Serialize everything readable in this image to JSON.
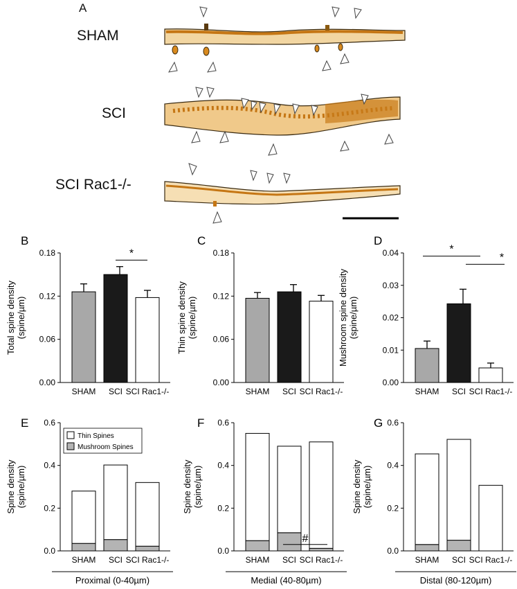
{
  "panel_a": {
    "letter": "A",
    "rows": [
      "SHAM",
      "SCI",
      "SCI Rac1-/-"
    ]
  },
  "colors": {
    "sham": "#a8a8a8",
    "sci": "#1a1a1a",
    "rac": "#ffffff",
    "thin": "#ffffff",
    "mushroom": "#b4b4b4",
    "dendrite": "#d08a1e"
  },
  "chart_data": [
    {
      "panel": "B",
      "type": "bar",
      "categories": [
        "SHAM",
        "SCI",
        "SCI Rac1-/-"
      ],
      "values": [
        0.126,
        0.15,
        0.118
      ],
      "errors": [
        0.011,
        0.011,
        0.01
      ],
      "ylabel": "Total spine density\n(spine/µm)",
      "ylim": [
        0,
        0.18
      ],
      "yticks": [
        "0.00",
        "0.06",
        "0.12",
        "0.18"
      ],
      "significance": [
        {
          "from": 1,
          "to": 2,
          "label": "*"
        }
      ]
    },
    {
      "panel": "C",
      "type": "bar",
      "categories": [
        "SHAM",
        "SCI",
        "SCI Rac1-/-"
      ],
      "values": [
        0.117,
        0.126,
        0.113
      ],
      "errors": [
        0.008,
        0.01,
        0.008
      ],
      "ylabel": "Thin spine density\n(spine/µm)",
      "ylim": [
        0,
        0.18
      ],
      "yticks": [
        "0.00",
        "0.06",
        "0.12",
        "0.18"
      ],
      "significance": []
    },
    {
      "panel": "D",
      "type": "bar",
      "categories": [
        "SHAM",
        "SCI",
        "SCI Rac1-/-"
      ],
      "values": [
        0.0105,
        0.0243,
        0.0045
      ],
      "errors": [
        0.0023,
        0.0045,
        0.0015
      ],
      "ylabel": "Mushroom spine density\n(spine/µm)",
      "ylim": [
        0,
        0.04
      ],
      "yticks": [
        "0.00",
        "0.01",
        "0.02",
        "0.03",
        "0.04"
      ],
      "significance": [
        {
          "from": 0,
          "to": 1,
          "label": "*"
        },
        {
          "from": 1,
          "to": 2,
          "label": "*"
        }
      ]
    },
    {
      "panel": "E",
      "type": "bar",
      "categories": [
        "SHAM",
        "SCI",
        "SCI Rac1-/-"
      ],
      "series": [
        {
          "name": "Mushroom Spines",
          "values": [
            0.035,
            0.053,
            0.022
          ]
        },
        {
          "name": "Thin Spines",
          "values": [
            0.245,
            0.349,
            0.298
          ]
        }
      ],
      "ylabel": "Spine density\n(spine/µm)",
      "ylim": [
        0,
        0.6
      ],
      "yticks": [
        "0.0",
        "0.2",
        "0.4",
        "0.6"
      ],
      "region_label": "Proximal (0-40µm)",
      "legend": [
        "Thin Spines",
        "Mushroom Spines"
      ],
      "significance": []
    },
    {
      "panel": "F",
      "type": "bar",
      "categories": [
        "SHAM",
        "SCI",
        "SCI Rac1-/-"
      ],
      "series": [
        {
          "name": "Mushroom Spines",
          "values": [
            0.048,
            0.085,
            0.012
          ]
        },
        {
          "name": "Thin Spines",
          "values": [
            0.502,
            0.405,
            0.498
          ]
        }
      ],
      "ylabel": "Spine density\n(spine/µm)",
      "ylim": [
        0,
        0.6
      ],
      "yticks": [
        "0.0",
        "0.2",
        "0.4",
        "0.6"
      ],
      "region_label": "Medial (40-80µm)",
      "significance": [
        {
          "from": 1,
          "to": 2,
          "label": "#"
        }
      ]
    },
    {
      "panel": "G",
      "type": "bar",
      "categories": [
        "SHAM",
        "SCI",
        "SCI Rac1-/-"
      ],
      "series": [
        {
          "name": "Mushroom Spines",
          "values": [
            0.03,
            0.05,
            0.0
          ]
        },
        {
          "name": "Thin Spines",
          "values": [
            0.424,
            0.472,
            0.307
          ]
        }
      ],
      "ylabel": "Spine density\n(spine/µm)",
      "ylim": [
        0,
        0.6
      ],
      "yticks": [
        "0.0",
        "0.2",
        "0.4",
        "0.6"
      ],
      "region_label": "Distal (80-120µm)",
      "significance": []
    }
  ]
}
